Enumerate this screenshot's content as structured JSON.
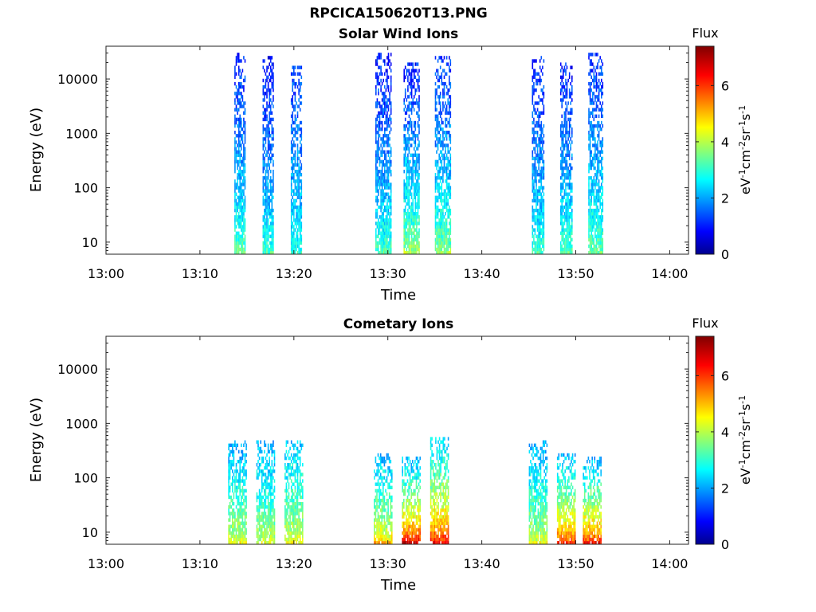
{
  "figure_title": "RPCICA150620T13.PNG",
  "chart_data": [
    {
      "type": "heatmap",
      "title": "Solar Wind Ions",
      "xlabel": "Time",
      "ylabel": "Energy (eV)",
      "x_ticks": [
        "13:00",
        "13:10",
        "13:20",
        "13:30",
        "13:40",
        "13:50",
        "14:00"
      ],
      "x_range": [
        "13:00",
        "14:02"
      ],
      "y_scale": "log",
      "y_ticks": [
        10,
        100,
        1000,
        10000
      ],
      "y_range": [
        6,
        40000
      ],
      "colorbar": {
        "label": "Flux",
        "units": "eV-1cm-2sr-1s-1",
        "ticks": [
          0,
          2,
          4,
          6
        ],
        "range": [
          0,
          7.4
        ],
        "colormap": "jet"
      },
      "bursts": [
        {
          "start": "13:13:40",
          "end": "13:14:50",
          "emax": 30000,
          "low_level": 3.5,
          "hi_level": 1.0
        },
        {
          "start": "13:16:40",
          "end": "13:17:50",
          "emax": 25000,
          "low_level": 3.2,
          "hi_level": 0.9
        },
        {
          "start": "13:19:40",
          "end": "13:20:50",
          "emax": 18000,
          "low_level": 3.0,
          "hi_level": 1.2
        },
        {
          "start": "13:28:40",
          "end": "13:30:20",
          "emax": 30000,
          "low_level": 3.3,
          "hi_level": 0.9
        },
        {
          "start": "13:31:40",
          "end": "13:33:20",
          "emax": 20000,
          "low_level": 4.0,
          "hi_level": 1.0
        },
        {
          "start": "13:35:00",
          "end": "13:36:40",
          "emax": 25000,
          "low_level": 3.8,
          "hi_level": 1.1
        },
        {
          "start": "13:45:20",
          "end": "13:46:40",
          "emax": 25000,
          "low_level": 3.2,
          "hi_level": 1.0
        },
        {
          "start": "13:48:20",
          "end": "13:49:40",
          "emax": 20000,
          "low_level": 3.4,
          "hi_level": 1.0
        },
        {
          "start": "13:51:20",
          "end": "13:52:50",
          "emax": 30000,
          "low_level": 3.6,
          "hi_level": 1.1
        }
      ]
    },
    {
      "type": "heatmap",
      "title": "Cometary Ions",
      "xlabel": "Time",
      "ylabel": "Energy (eV)",
      "x_ticks": [
        "13:00",
        "13:10",
        "13:20",
        "13:30",
        "13:40",
        "13:50",
        "14:00"
      ],
      "x_range": [
        "13:00",
        "14:02"
      ],
      "y_scale": "log",
      "y_ticks": [
        10,
        100,
        1000,
        10000
      ],
      "y_range": [
        6,
        40000
      ],
      "colorbar": {
        "label": "Flux",
        "units": "eV-1cm-2sr-1s-1",
        "ticks": [
          0,
          2,
          4,
          6
        ],
        "range": [
          0,
          7.4
        ],
        "colormap": "jet"
      },
      "bursts": [
        {
          "start": "13:13:00",
          "end": "13:15:00",
          "emax": 500,
          "low_level": 4.5,
          "hi_level": 2.0
        },
        {
          "start": "13:16:00",
          "end": "13:18:00",
          "emax": 500,
          "low_level": 4.3,
          "hi_level": 2.0
        },
        {
          "start": "13:19:00",
          "end": "13:21:00",
          "emax": 500,
          "low_level": 4.5,
          "hi_level": 2.2
        },
        {
          "start": "13:28:30",
          "end": "13:30:30",
          "emax": 300,
          "low_level": 5.0,
          "hi_level": 2.0
        },
        {
          "start": "13:31:30",
          "end": "13:33:30",
          "emax": 250,
          "low_level": 6.8,
          "hi_level": 2.0
        },
        {
          "start": "13:34:30",
          "end": "13:36:30",
          "emax": 600,
          "low_level": 6.5,
          "hi_level": 2.2
        },
        {
          "start": "13:45:00",
          "end": "13:47:00",
          "emax": 500,
          "low_level": 4.5,
          "hi_level": 2.0
        },
        {
          "start": "13:48:00",
          "end": "13:50:00",
          "emax": 300,
          "low_level": 6.2,
          "hi_level": 2.0
        },
        {
          "start": "13:50:45",
          "end": "13:52:45",
          "emax": 250,
          "low_level": 6.4,
          "hi_level": 2.0
        }
      ]
    }
  ]
}
